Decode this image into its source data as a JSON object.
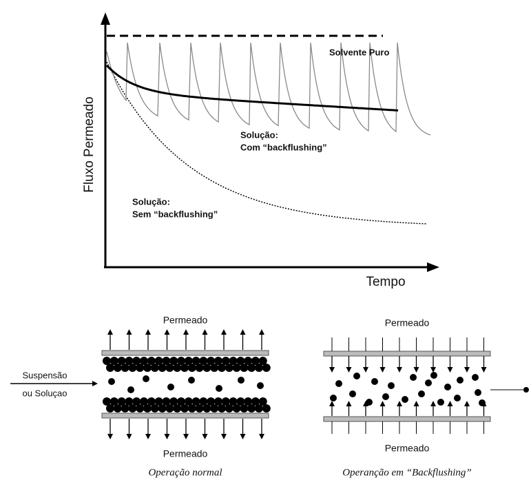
{
  "graph": {
    "y_label": "Fluxo Permeado",
    "x_label": "Tempo",
    "pure_solvent": "Solvente Puro",
    "with_backflushing": [
      "Solução:",
      "Com “backflushing”"
    ],
    "without_backflushing": [
      "Solução:",
      "Sem “backflushing”"
    ]
  },
  "inlet": [
    "Suspensão",
    "ou Soluçao"
  ],
  "panels": [
    {
      "top_label": "Permeado",
      "bottom_label": "Permeado",
      "caption": "Operação normal"
    },
    {
      "top_label": "Permeado",
      "bottom_label": "Permeado",
      "caption": "Operanção em “Backflushing”"
    }
  ]
}
